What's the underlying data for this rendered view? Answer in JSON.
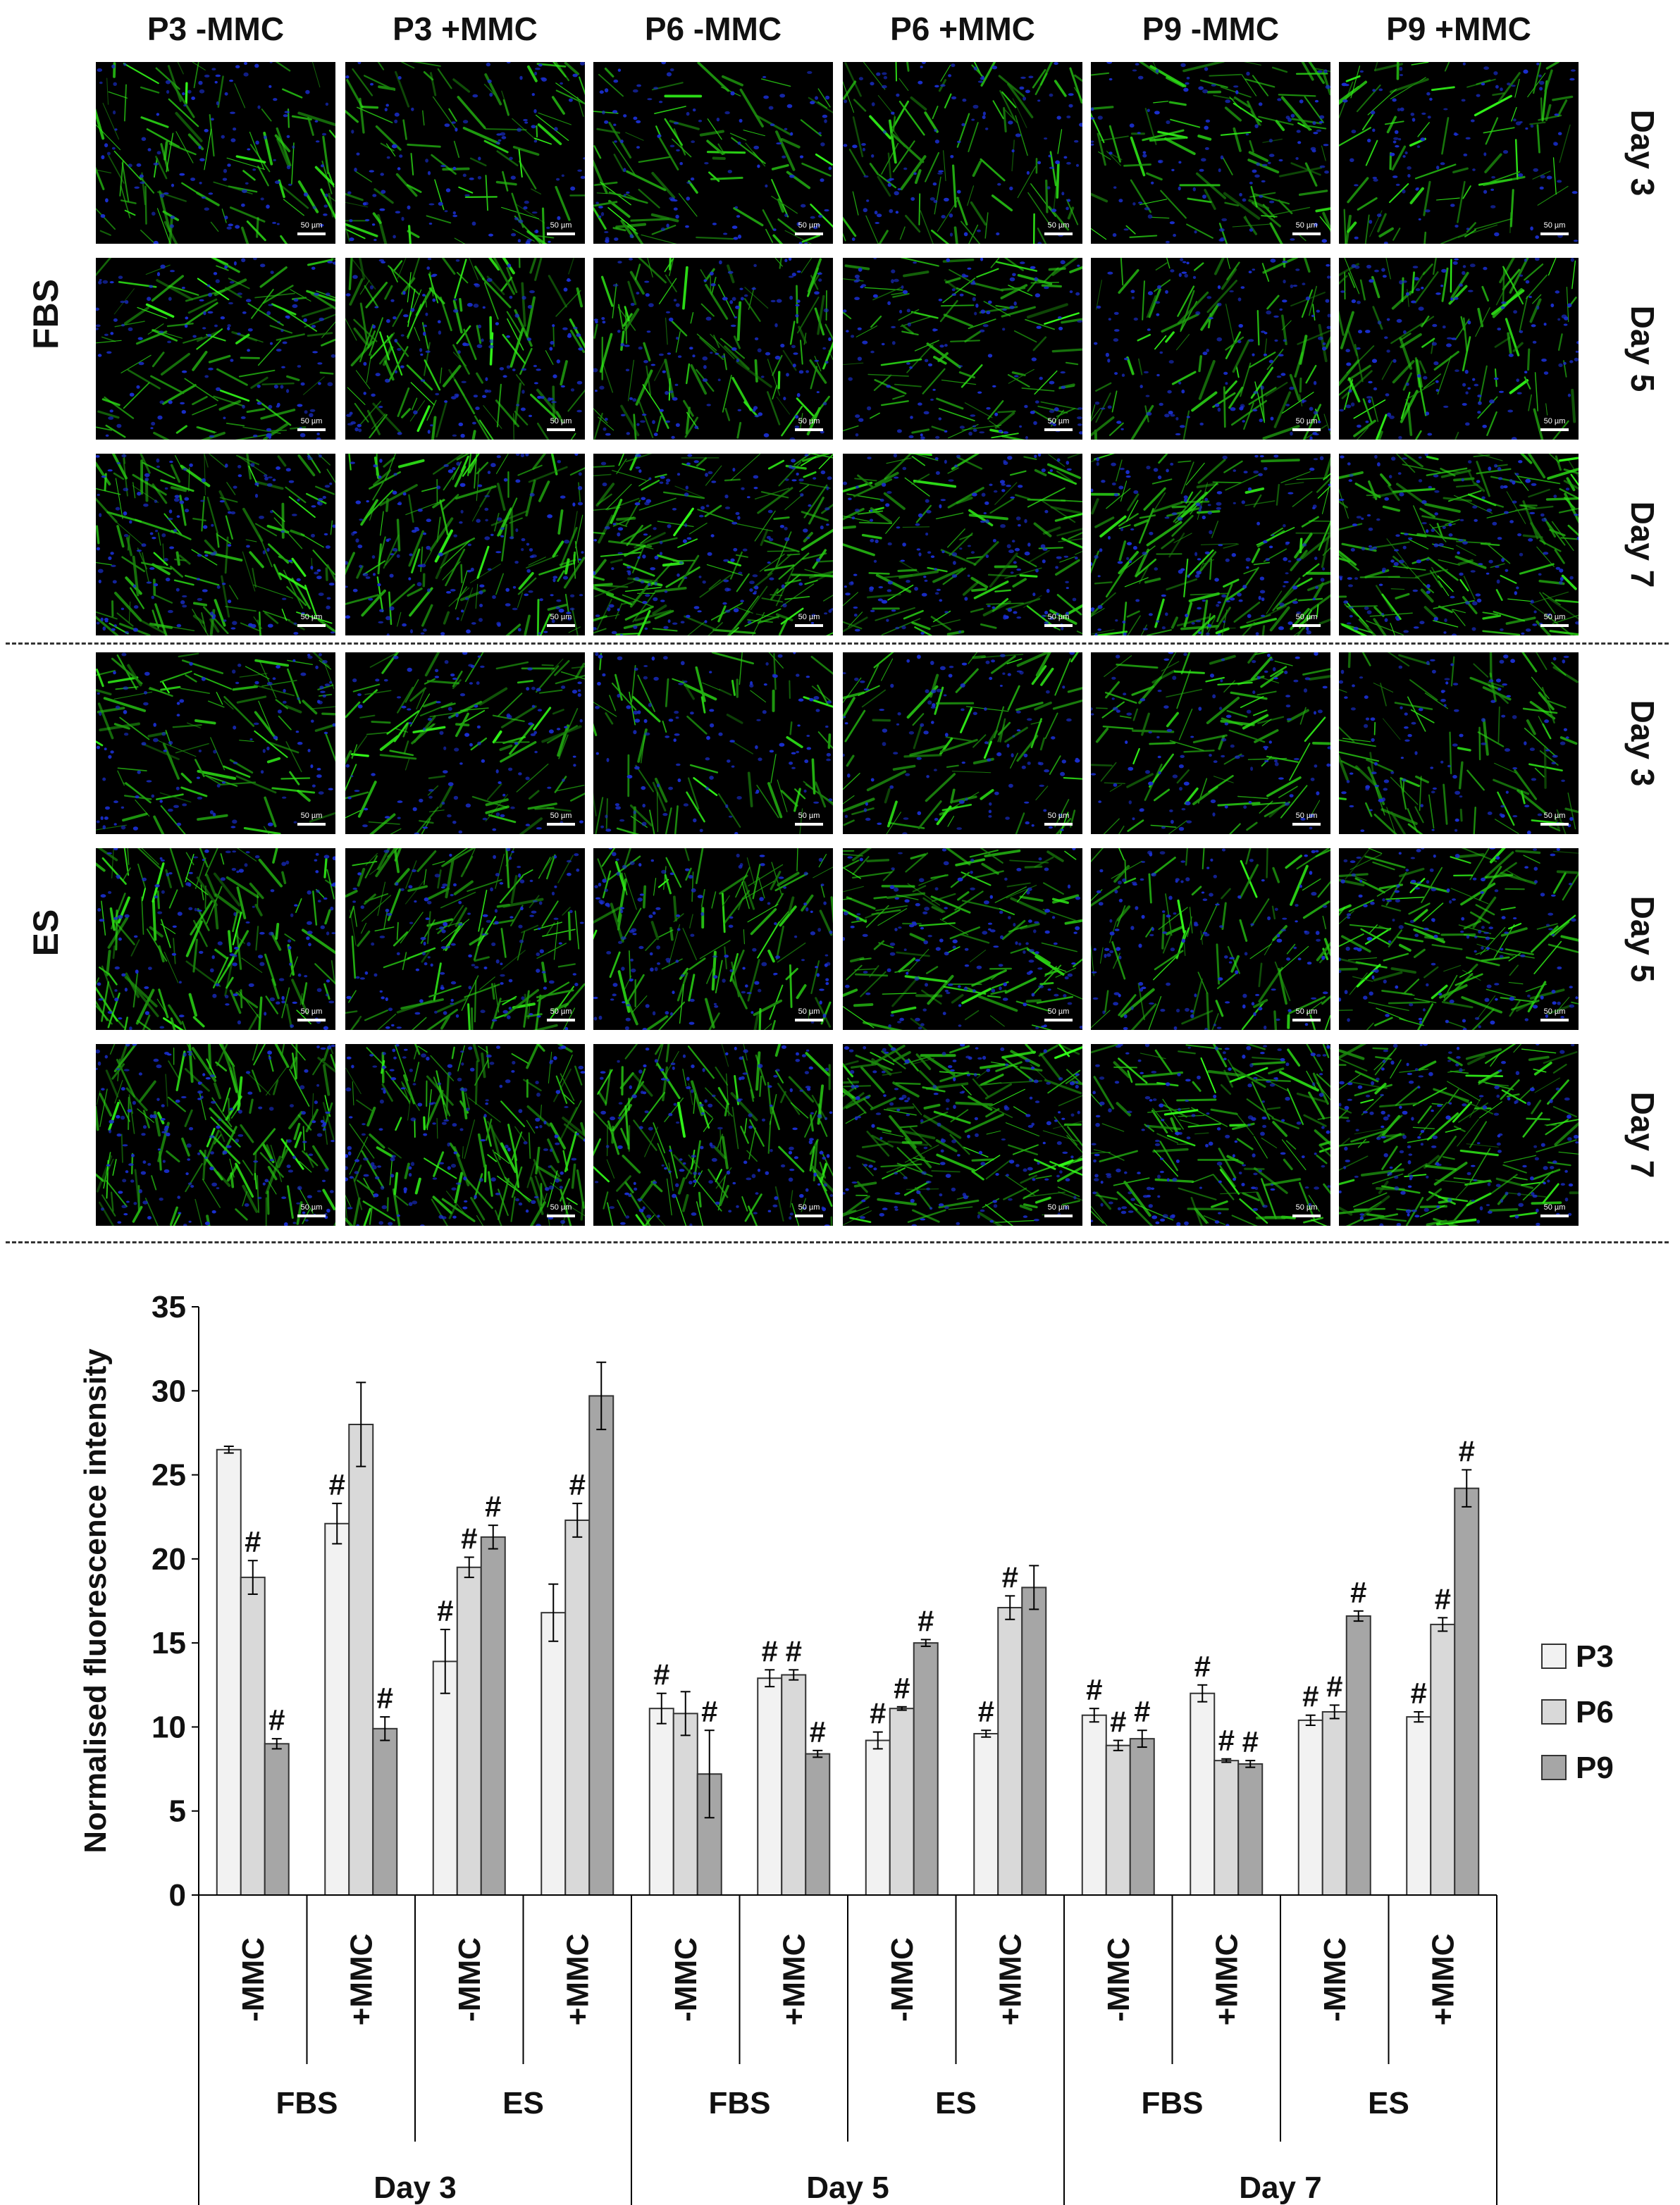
{
  "panels": {
    "columns": [
      "P3 -MMC",
      "P3 +MMC",
      "P6 -MMC",
      "P6 +MMC",
      "P9 -MMC",
      "P9 +MMC"
    ],
    "row_labels": [
      "Day 3",
      "Day 5",
      "Day 7",
      "Day 3",
      "Day 5",
      "Day 7"
    ],
    "groups": [
      "FBS",
      "ES"
    ],
    "scale_bar_label": "50 µm",
    "colors": {
      "nuclei": "#1a2fd0",
      "actin": "#2ee21a",
      "background": "#000000"
    }
  },
  "chart_data": {
    "type": "bar",
    "ylabel": "Normalised fluorescence intensity",
    "xlabel": "",
    "ylim": [
      0,
      35
    ],
    "yticks": [
      0,
      5,
      10,
      15,
      20,
      25,
      30,
      35
    ],
    "categories": [
      [
        "Day 3",
        "FBS",
        "-MMC"
      ],
      [
        "Day 3",
        "FBS",
        "+MMC"
      ],
      [
        "Day 3",
        "ES",
        "-MMC"
      ],
      [
        "Day 3",
        "ES",
        "+MMC"
      ],
      [
        "Day 5",
        "FBS",
        "-MMC"
      ],
      [
        "Day 5",
        "FBS",
        "+MMC"
      ],
      [
        "Day 5",
        "ES",
        "-MMC"
      ],
      [
        "Day 5",
        "ES",
        "+MMC"
      ],
      [
        "Day 7",
        "FBS",
        "-MMC"
      ],
      [
        "Day 7",
        "FBS",
        "+MMC"
      ],
      [
        "Day 7",
        "ES",
        "-MMC"
      ],
      [
        "Day 7",
        "ES",
        "+MMC"
      ]
    ],
    "category_levels": {
      "treatment": [
        "-MMC",
        "+MMC",
        "-MMC",
        "+MMC",
        "-MMC",
        "+MMC",
        "-MMC",
        "+MMC",
        "-MMC",
        "+MMC",
        "-MMC",
        "+MMC"
      ],
      "serum": [
        "FBS",
        "ES",
        "FBS",
        "ES",
        "FBS",
        "ES"
      ],
      "day": [
        "Day 3",
        "Day 5",
        "Day 7"
      ]
    },
    "series": [
      {
        "name": "P3",
        "color": "#f2f2f2",
        "values": [
          26.5,
          22.1,
          13.9,
          16.8,
          11.1,
          12.9,
          9.2,
          9.6,
          10.7,
          12.0,
          10.4,
          10.6
        ],
        "errors": [
          0.2,
          1.2,
          1.9,
          1.7,
          0.9,
          0.5,
          0.5,
          0.2,
          0.4,
          0.5,
          0.3,
          0.3
        ],
        "marks": [
          "",
          "#",
          "#",
          "",
          "#",
          "#",
          "#",
          "#",
          "#",
          "#",
          "#",
          "#"
        ]
      },
      {
        "name": "P6",
        "color": "#d9d9d9",
        "values": [
          18.9,
          28.0,
          19.5,
          22.3,
          10.8,
          13.1,
          11.1,
          17.1,
          8.9,
          8.0,
          10.9,
          16.1
        ],
        "errors": [
          1.0,
          2.5,
          0.6,
          1.0,
          1.3,
          0.3,
          0.1,
          0.7,
          0.3,
          0.1,
          0.4,
          0.4
        ],
        "marks": [
          "#",
          "",
          "#",
          "#",
          "",
          "#",
          "#",
          "#",
          "#",
          "#",
          "#",
          "#"
        ]
      },
      {
        "name": "P9",
        "color": "#a6a6a6",
        "values": [
          9.0,
          9.9,
          21.3,
          29.7,
          7.2,
          8.4,
          15.0,
          18.3,
          9.3,
          7.8,
          16.6,
          24.2
        ],
        "errors": [
          0.3,
          0.7,
          0.7,
          2.0,
          2.6,
          0.2,
          0.2,
          1.3,
          0.5,
          0.2,
          0.3,
          1.1
        ],
        "marks": [
          "#",
          "#",
          "#",
          "",
          "#",
          "#",
          "#",
          "",
          "#",
          "#",
          "#",
          "#"
        ]
      }
    ],
    "legend": {
      "entries": [
        "P3",
        "P6",
        "P9"
      ],
      "placement": "right"
    }
  }
}
